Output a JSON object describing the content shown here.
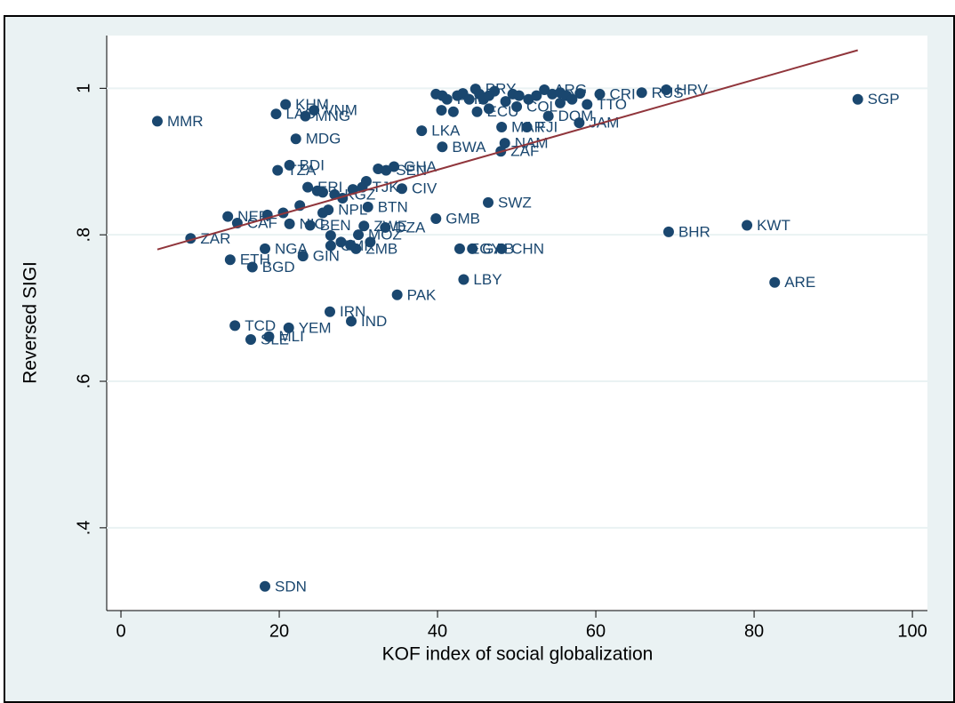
{
  "chart_data": {
    "type": "scatter",
    "xlabel": "KOF index of social globalization",
    "ylabel": "Reversed SIGI",
    "xlim": [
      -1.8,
      101.9
    ],
    "ylim": [
      0.287,
      1.072
    ],
    "xticks": [
      0,
      20,
      40,
      60,
      80,
      100
    ],
    "yticks": [
      {
        "value": 0.4,
        "label": ".4"
      },
      {
        "value": 0.6,
        "label": ".6"
      },
      {
        "value": 0.8,
        "label": ".8"
      },
      1
    ],
    "grid": true,
    "points": {
      "color": "#1a476f",
      "x": [
        4.6,
        93.1,
        8.8,
        13.8,
        16.6,
        18.2,
        23.0,
        14.4,
        16.4,
        18.7,
        21.2,
        26.4,
        29.1,
        34.9,
        43.3,
        82.6,
        69.2,
        79.1,
        18.2,
        20.8,
        19.6,
        24.4,
        23.3,
        22.1,
        21.3,
        19.8,
        13.5,
        14.7,
        38.0,
        40.6,
        48.5,
        48.0,
        48.1,
        51.3,
        57.9,
        54.0,
        46.4,
        39.8,
        48.1,
        42.8,
        44.4,
        68.9,
        65.8,
        31.2,
        35.5,
        30.7,
        33.4,
        29.7,
        26.2,
        23.9,
        53.5,
        58.9,
        44.8,
        47.2,
        39.8,
        40.6,
        41.2,
        42.5,
        43.2,
        44.0,
        45.3,
        45.8,
        46.5,
        48.6,
        49.5,
        50.3,
        51.5,
        52.5,
        54.5,
        55.5,
        56.3,
        57.0,
        58.0,
        60.5,
        40.5,
        42.0,
        45.0,
        46.5,
        50.0,
        55.5,
        22.6,
        23.6,
        24.8,
        25.5,
        27.0,
        28.0,
        29.3,
        30.5,
        31.0,
        32.5,
        33.5,
        34.5,
        20.5,
        18.5,
        21.3,
        25.5,
        26.5,
        26.5,
        27.8,
        29.0,
        30.0,
        31.5
      ],
      "y": [
        0.955,
        0.985,
        0.795,
        0.766,
        0.756,
        0.781,
        0.771,
        0.676,
        0.657,
        0.661,
        0.673,
        0.695,
        0.682,
        0.718,
        0.739,
        0.735,
        0.804,
        0.813,
        0.32,
        0.978,
        0.965,
        0.97,
        0.962,
        0.931,
        0.895,
        0.888,
        0.825,
        0.816,
        0.942,
        0.92,
        0.925,
        0.914,
        0.947,
        0.947,
        0.953,
        0.962,
        0.844,
        0.822,
        0.781,
        0.781,
        0.781,
        0.998,
        0.994,
        0.838,
        0.863,
        0.812,
        0.81,
        0.781,
        0.834,
        0.813,
        0.998,
        0.978,
        0.999,
        0.996,
        0.992,
        0.99,
        0.985,
        0.99,
        0.993,
        0.985,
        0.992,
        0.985,
        0.99,
        0.982,
        0.992,
        0.99,
        0.985,
        0.99,
        0.992,
        0.994,
        0.99,
        0.985,
        0.993,
        0.992,
        0.97,
        0.968,
        0.968,
        0.972,
        0.975,
        0.98,
        0.84,
        0.865,
        0.86,
        0.858,
        0.855,
        0.85,
        0.862,
        0.865,
        0.873,
        0.89,
        0.888,
        0.893,
        0.83,
        0.827,
        0.815,
        0.83,
        0.799,
        0.785,
        0.79,
        0.786,
        0.8,
        0.79
      ],
      "labels": [
        "MMR",
        "SGP",
        "ZAR",
        "ETH",
        "BGD",
        "NGA",
        "GIN",
        "TCD",
        "SLE",
        "MLI",
        "YEM",
        "IRN",
        "IND",
        "PAK",
        "LBY",
        "ARE",
        "BHR",
        "KWT",
        "SDN",
        "KHM",
        "LAO",
        "VNM",
        "MNG",
        "MDG",
        "BDI",
        "TZA",
        "NER",
        "CAF",
        "LKA",
        "BWA",
        "NAM",
        "ZAF",
        "MAR",
        "FJI",
        "JAM",
        "DOM",
        "SWZ",
        "GMB",
        "CHN",
        "EGY",
        "GAB",
        "HRV",
        "RUS",
        "BTN",
        "CIV",
        "ZWE",
        "DZA",
        "ZMB",
        "NPL",
        "BEN",
        "ARG",
        "TTO",
        "PRY",
        null,
        null,
        null,
        "PHL",
        null,
        null,
        null,
        null,
        null,
        null,
        null,
        null,
        null,
        null,
        null,
        null,
        null,
        null,
        null,
        null,
        "CRI",
        null,
        null,
        "ECU",
        null,
        "COL",
        null,
        null,
        "ERI",
        null,
        null,
        "KGZ",
        null,
        null,
        "TJK",
        null,
        null,
        "SEN",
        "GHA",
        null,
        null,
        "NIC",
        null,
        null,
        "CMR",
        null,
        null,
        "MOZ",
        null
      ]
    },
    "fit_line": {
      "color": "#90353b",
      "x": [
        4.6,
        93.1
      ],
      "y": [
        0.78,
        1.052
      ]
    }
  }
}
